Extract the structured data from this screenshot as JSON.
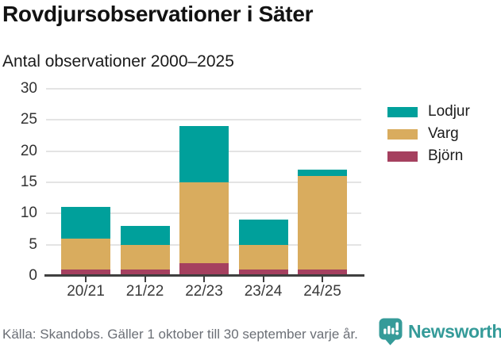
{
  "header": {
    "title": "Rovdjursobservationer i Säter",
    "subtitle": "Antal observationer 2000–2025"
  },
  "chart_data": {
    "type": "bar",
    "stacked": true,
    "title": "Rovdjursobservationer i Säter",
    "subtitle": "Antal observationer 2000–2025",
    "xlabel": "",
    "ylabel": "",
    "categories": [
      "20/21",
      "21/22",
      "22/23",
      "23/24",
      "24/25"
    ],
    "series": [
      {
        "name": "Björn",
        "color": "#A5405F",
        "values": [
          1,
          1,
          2,
          1,
          1
        ]
      },
      {
        "name": "Varg",
        "color": "#D9AC5E",
        "values": [
          5,
          4,
          13,
          4,
          15
        ]
      },
      {
        "name": "Lodjur",
        "color": "#00A09B",
        "values": [
          5,
          3,
          9,
          4,
          1
        ]
      }
    ],
    "totals": [
      11,
      8,
      24,
      9,
      17
    ],
    "yticks": [
      0,
      5,
      10,
      15,
      20,
      25,
      30
    ],
    "ylim": [
      0,
      30
    ],
    "grid": true,
    "legend_position": "right",
    "legend": [
      {
        "label": "Lodjur",
        "color": "#00A09B"
      },
      {
        "label": "Varg",
        "color": "#D9AC5E"
      },
      {
        "label": "Björn",
        "color": "#A5405F"
      }
    ]
  },
  "footer": {
    "source": "Källa: Skandobs. Gäller 1 oktober till 30 september varje år.",
    "brand": "Newsworthy"
  },
  "colors": {
    "accent": "#359b99",
    "axis": "#3f3f3f",
    "grid": "#e4e4e4",
    "tick_text": "#3a3a3a",
    "title_text": "#121212",
    "source_text": "#6b6f76"
  }
}
